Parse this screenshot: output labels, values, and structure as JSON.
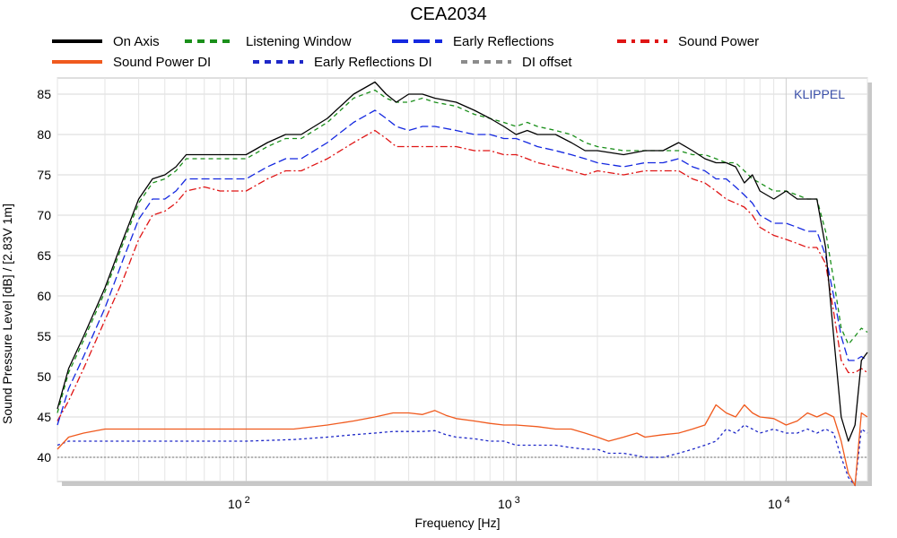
{
  "chart_data": {
    "type": "line",
    "title": "CEA2034",
    "xlabel": "Frequency [Hz]",
    "ylabel": "Sound Pressure Level [dB]  / [2.83V 1m]",
    "brand": "KLIPPEL",
    "x_scale": "log",
    "xlim": [
      20,
      20000
    ],
    "ylim": [
      37,
      87
    ],
    "yticks": [
      40,
      45,
      50,
      55,
      60,
      65,
      70,
      75,
      80,
      85
    ],
    "xticks": [
      {
        "base": "10",
        "exp": "2",
        "value": 100
      },
      {
        "base": "10",
        "exp": "3",
        "value": 1000
      },
      {
        "base": "10",
        "exp": "4",
        "value": 10000
      }
    ],
    "grid": true,
    "legend_position": "top",
    "series": [
      {
        "name": "On Axis",
        "color": "#000000",
        "dash": "solid",
        "x": [
          20,
          22,
          25,
          30,
          35,
          40,
          45,
          50,
          55,
          60,
          70,
          80,
          90,
          100,
          120,
          140,
          160,
          200,
          250,
          300,
          330,
          360,
          400,
          450,
          500,
          600,
          700,
          800,
          900,
          1000,
          1100,
          1200,
          1400,
          1600,
          1800,
          2000,
          2500,
          3000,
          3500,
          4000,
          4500,
          5000,
          5500,
          6000,
          6500,
          7000,
          7500,
          8000,
          9000,
          10000,
          11000,
          12000,
          13000,
          14000,
          15000,
          16000,
          17000,
          18000,
          19000,
          20000
        ],
        "y": [
          46,
          51,
          55,
          61,
          67,
          72,
          74.5,
          75,
          76,
          77.5,
          77.5,
          77.5,
          77.5,
          77.5,
          79,
          80,
          80,
          82,
          85,
          86.5,
          85,
          84,
          85,
          85,
          84.5,
          84,
          83,
          82,
          81,
          80,
          80.5,
          80,
          80,
          79,
          78,
          78,
          77.5,
          78,
          78,
          79,
          78,
          77,
          76.5,
          76.5,
          76,
          74,
          75,
          73,
          72,
          73,
          72,
          72,
          72,
          66,
          55,
          45,
          42,
          44,
          52,
          53
        ]
      },
      {
        "name": "Listening Window",
        "color": "#1a8f1a",
        "dash": "5,4",
        "x": [
          20,
          22,
          25,
          30,
          35,
          40,
          45,
          50,
          55,
          60,
          70,
          80,
          90,
          100,
          120,
          140,
          160,
          200,
          250,
          300,
          330,
          360,
          400,
          450,
          500,
          600,
          700,
          800,
          900,
          1000,
          1100,
          1200,
          1400,
          1600,
          1800,
          2000,
          2500,
          3000,
          3500,
          4000,
          4500,
          5000,
          5500,
          6000,
          6500,
          7000,
          7500,
          8000,
          9000,
          10000,
          11000,
          12000,
          13000,
          14000,
          15000,
          16000,
          17000,
          18000,
          19000,
          20000
        ],
        "y": [
          45.5,
          50.5,
          54.5,
          60.5,
          66.5,
          71.5,
          74,
          74.5,
          75.5,
          77,
          77,
          77,
          77,
          77,
          78.5,
          79.5,
          79.5,
          81.5,
          84.5,
          85.5,
          84.5,
          84,
          84,
          84.5,
          84,
          83.5,
          82.5,
          82,
          81.5,
          81,
          81.5,
          81,
          80.5,
          80,
          79,
          78.5,
          78,
          78,
          78,
          78,
          77.5,
          77.5,
          77,
          76.5,
          76.5,
          75.5,
          74.5,
          74,
          73,
          73,
          72.5,
          72,
          72,
          68,
          62,
          56,
          54,
          55,
          56,
          55.5
        ]
      },
      {
        "name": "Early Reflections",
        "color": "#1428e0",
        "dash": "9,4",
        "x": [
          20,
          22,
          25,
          30,
          35,
          40,
          45,
          50,
          55,
          60,
          70,
          80,
          90,
          100,
          120,
          140,
          160,
          200,
          250,
          300,
          330,
          360,
          400,
          450,
          500,
          600,
          700,
          800,
          900,
          1000,
          1100,
          1200,
          1400,
          1600,
          1800,
          2000,
          2500,
          3000,
          3500,
          4000,
          4500,
          5000,
          5500,
          6000,
          6500,
          7000,
          7500,
          8000,
          9000,
          10000,
          11000,
          12000,
          13000,
          14000,
          15000,
          16000,
          17000,
          18000,
          19000,
          20000
        ],
        "y": [
          44,
          48.5,
          52.5,
          58.5,
          64.5,
          69.5,
          72,
          72,
          73,
          74.5,
          74.5,
          74.5,
          74.5,
          74.5,
          76,
          77,
          77,
          79,
          81.5,
          83,
          82,
          81,
          80.5,
          81,
          81,
          80.5,
          80,
          80,
          79.5,
          79.5,
          79,
          78.5,
          78,
          77.5,
          77,
          76.5,
          76,
          76.5,
          76.5,
          77,
          76,
          75.5,
          74.5,
          74.5,
          73.5,
          72.5,
          71.5,
          70,
          69,
          69,
          68.5,
          68,
          68,
          65,
          60,
          55,
          52,
          52,
          52.5,
          52
        ]
      },
      {
        "name": "Sound Power",
        "color": "#e01414",
        "dash": "8,3,2,3",
        "x": [
          20,
          22,
          25,
          30,
          35,
          40,
          45,
          50,
          55,
          60,
          70,
          80,
          90,
          100,
          120,
          140,
          160,
          200,
          250,
          300,
          330,
          360,
          400,
          450,
          500,
          600,
          700,
          800,
          900,
          1000,
          1100,
          1200,
          1400,
          1600,
          1800,
          2000,
          2500,
          3000,
          3500,
          4000,
          4500,
          5000,
          5500,
          6000,
          6500,
          7000,
          7500,
          8000,
          9000,
          10000,
          11000,
          12000,
          13000,
          14000,
          15000,
          16000,
          17000,
          18000,
          19000,
          20000
        ],
        "y": [
          44.5,
          47,
          51,
          57,
          62,
          67,
          70,
          70.5,
          71.5,
          73,
          73.5,
          73,
          73,
          73,
          74.5,
          75.5,
          75.5,
          77,
          79,
          80.5,
          79.5,
          78.5,
          78.5,
          78.5,
          78.5,
          78.5,
          78,
          78,
          77.5,
          77.5,
          77,
          76.5,
          76,
          75.5,
          75,
          75.5,
          75,
          75.5,
          75.5,
          75.5,
          74.5,
          74,
          73,
          72,
          71.5,
          71,
          70,
          68.5,
          67.5,
          67,
          66.5,
          66,
          66,
          64,
          58,
          52,
          50.5,
          50.5,
          51,
          50.5
        ]
      },
      {
        "name": "Sound Power DI",
        "color": "#f05a1e",
        "dash": "solid",
        "x": [
          20,
          22,
          25,
          30,
          40,
          50,
          70,
          100,
          150,
          200,
          250,
          300,
          350,
          400,
          450,
          500,
          550,
          600,
          700,
          800,
          900,
          1000,
          1200,
          1400,
          1600,
          1800,
          2000,
          2200,
          2500,
          2800,
          3000,
          3500,
          4000,
          4500,
          5000,
          5500,
          6000,
          6500,
          7000,
          7500,
          8000,
          9000,
          10000,
          11000,
          12000,
          13000,
          14000,
          15000,
          16000,
          17000,
          18000,
          19000,
          20000
        ],
        "y": [
          41,
          42.5,
          43,
          43.5,
          43.5,
          43.5,
          43.5,
          43.5,
          43.5,
          44,
          44.5,
          45,
          45.5,
          45.5,
          45.3,
          45.8,
          45.2,
          44.8,
          44.5,
          44.2,
          44,
          44,
          43.8,
          43.5,
          43.5,
          43,
          42.5,
          42,
          42.5,
          43,
          42.5,
          42.8,
          43,
          43.5,
          44,
          46.5,
          45.5,
          45,
          46.5,
          45.5,
          45,
          44.8,
          44,
          44.5,
          45.5,
          45,
          45.5,
          45,
          42,
          38,
          36.5,
          45.5,
          45
        ]
      },
      {
        "name": "Early Reflections DI",
        "color": "#1e28c8",
        "dash": "3,3",
        "x": [
          20,
          22,
          25,
          30,
          40,
          50,
          70,
          100,
          150,
          200,
          250,
          300,
          350,
          400,
          450,
          500,
          550,
          600,
          700,
          800,
          900,
          1000,
          1200,
          1400,
          1600,
          1800,
          2000,
          2200,
          2500,
          2800,
          3000,
          3500,
          4000,
          4500,
          5000,
          5500,
          6000,
          6500,
          7000,
          7500,
          8000,
          9000,
          10000,
          11000,
          12000,
          13000,
          14000,
          15000,
          16000,
          17000,
          18000,
          19000,
          20000
        ],
        "y": [
          41.5,
          42,
          42,
          42,
          42,
          42,
          42,
          42,
          42.2,
          42.5,
          42.8,
          43,
          43.2,
          43.2,
          43.2,
          43.3,
          42.8,
          42.5,
          42.3,
          42,
          42,
          41.5,
          41.5,
          41.5,
          41.2,
          41,
          41,
          40.5,
          40.5,
          40.2,
          40,
          40,
          40.5,
          41,
          41.5,
          42,
          43.5,
          43,
          44,
          43.5,
          43,
          43.5,
          43,
          43,
          43.5,
          43,
          43.5,
          43,
          40,
          37.5,
          36.5,
          43.5,
          43
        ]
      },
      {
        "name": "DI offset",
        "color": "#8c8c8c",
        "dash": "2,2",
        "x": [
          20,
          20000
        ],
        "y": [
          40,
          40
        ]
      }
    ]
  }
}
